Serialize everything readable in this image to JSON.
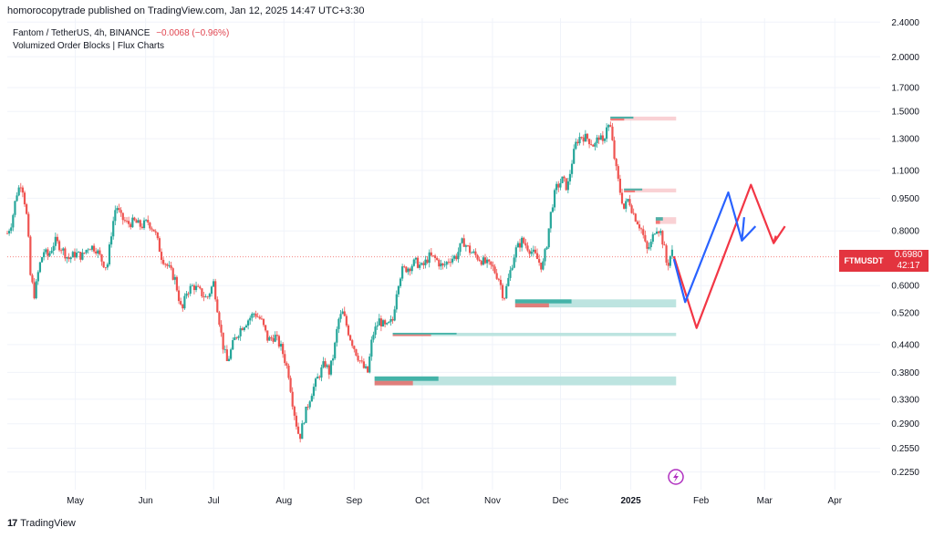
{
  "header": {
    "published": "homorocopytrade published on TradingView.com, Jan 12, 2025 14:47 UTC+3:30"
  },
  "legend": {
    "symbol_line": "Fantom / TetherUS, 4h, BINANCE",
    "change": "−0.0068 (−0.96%)",
    "indicator": "Volumized Order Blocks | Flux Charts"
  },
  "price_tag": {
    "symbol": "FTMUSDT",
    "price": "0.6980",
    "countdown": "42:17"
  },
  "footer": {
    "brand": "TradingView",
    "logo": "17"
  },
  "colors": {
    "up": "#26a69a",
    "down": "#ef5350",
    "blue_path": "#2962ff",
    "red_path": "#f23645",
    "bull_zone": "#b2dfdb",
    "bear_zone": "#f8c9cc"
  },
  "chart_data": {
    "type": "candlestick",
    "title": "Fantom / TetherUS, 4h, BINANCE",
    "y_scale": "log",
    "ylim": [
      0.205,
      2.45
    ],
    "y_ticks": [
      "2.4000",
      "2.0000",
      "1.7000",
      "1.5000",
      "1.3000",
      "1.1000",
      "0.9500",
      "0.8000",
      "0.6000",
      "0.5200",
      "0.4400",
      "0.3800",
      "0.3300",
      "0.2900",
      "0.2550",
      "0.2250"
    ],
    "y_tick_values": [
      2.4,
      2.0,
      1.7,
      1.5,
      1.3,
      1.1,
      0.95,
      0.8,
      0.6,
      0.52,
      0.44,
      0.38,
      0.33,
      0.29,
      0.255,
      0.225
    ],
    "x_labels": [
      "May",
      "Jun",
      "Jul",
      "Aug",
      "Sep",
      "Oct",
      "Nov",
      "Dec",
      "2025",
      "Feb",
      "Mar",
      "Apr"
    ],
    "x_label_days": [
      30,
      61,
      91,
      122,
      153,
      183,
      214,
      244,
      275,
      306,
      334,
      365
    ],
    "xlim_days": [
      0,
      385
    ],
    "last_price": 0.698,
    "price_path": [
      {
        "day": 0,
        "price": 0.79
      },
      {
        "day": 2,
        "price": 0.84
      },
      {
        "day": 4,
        "price": 0.97
      },
      {
        "day": 6,
        "price": 1.03
      },
      {
        "day": 7,
        "price": 0.99
      },
      {
        "day": 9,
        "price": 0.83
      },
      {
        "day": 10,
        "price": 0.64
      },
      {
        "day": 12,
        "price": 0.57
      },
      {
        "day": 14,
        "price": 0.66
      },
      {
        "day": 16,
        "price": 0.72
      },
      {
        "day": 18,
        "price": 0.7
      },
      {
        "day": 21,
        "price": 0.76
      },
      {
        "day": 24,
        "price": 0.73
      },
      {
        "day": 27,
        "price": 0.69
      },
      {
        "day": 30,
        "price": 0.71
      },
      {
        "day": 33,
        "price": 0.7
      },
      {
        "day": 36,
        "price": 0.74
      },
      {
        "day": 39,
        "price": 0.73
      },
      {
        "day": 42,
        "price": 0.68
      },
      {
        "day": 44,
        "price": 0.66
      },
      {
        "day": 46,
        "price": 0.8
      },
      {
        "day": 48,
        "price": 0.92
      },
      {
        "day": 50,
        "price": 0.86
      },
      {
        "day": 53,
        "price": 0.83
      },
      {
        "day": 56,
        "price": 0.84
      },
      {
        "day": 59,
        "price": 0.82
      },
      {
        "day": 62,
        "price": 0.84
      },
      {
        "day": 65,
        "price": 0.8
      },
      {
        "day": 68,
        "price": 0.7
      },
      {
        "day": 71,
        "price": 0.66
      },
      {
        "day": 74,
        "price": 0.62
      },
      {
        "day": 77,
        "price": 0.52
      },
      {
        "day": 79,
        "price": 0.58
      },
      {
        "day": 82,
        "price": 0.6
      },
      {
        "day": 85,
        "price": 0.58
      },
      {
        "day": 88,
        "price": 0.56
      },
      {
        "day": 91,
        "price": 0.61
      },
      {
        "day": 93,
        "price": 0.52
      },
      {
        "day": 95,
        "price": 0.44
      },
      {
        "day": 97,
        "price": 0.4
      },
      {
        "day": 100,
        "price": 0.45
      },
      {
        "day": 103,
        "price": 0.48
      },
      {
        "day": 106,
        "price": 0.5
      },
      {
        "day": 109,
        "price": 0.52
      },
      {
        "day": 112,
        "price": 0.5
      },
      {
        "day": 115,
        "price": 0.45
      },
      {
        "day": 118,
        "price": 0.46
      },
      {
        "day": 121,
        "price": 0.43
      },
      {
        "day": 124,
        "price": 0.38
      },
      {
        "day": 126,
        "price": 0.32
      },
      {
        "day": 128,
        "price": 0.28
      },
      {
        "day": 129,
        "price": 0.27
      },
      {
        "day": 131,
        "price": 0.3
      },
      {
        "day": 134,
        "price": 0.34
      },
      {
        "day": 137,
        "price": 0.37
      },
      {
        "day": 140,
        "price": 0.4
      },
      {
        "day": 142,
        "price": 0.38
      },
      {
        "day": 144,
        "price": 0.42
      },
      {
        "day": 146,
        "price": 0.5
      },
      {
        "day": 148,
        "price": 0.52
      },
      {
        "day": 151,
        "price": 0.46
      },
      {
        "day": 154,
        "price": 0.42
      },
      {
        "day": 157,
        "price": 0.39
      },
      {
        "day": 159,
        "price": 0.38
      },
      {
        "day": 161,
        "price": 0.46
      },
      {
        "day": 164,
        "price": 0.5
      },
      {
        "day": 167,
        "price": 0.48
      },
      {
        "day": 170,
        "price": 0.5
      },
      {
        "day": 172,
        "price": 0.6
      },
      {
        "day": 174,
        "price": 0.65
      },
      {
        "day": 177,
        "price": 0.66
      },
      {
        "day": 180,
        "price": 0.68
      },
      {
        "day": 183,
        "price": 0.66
      },
      {
        "day": 186,
        "price": 0.7
      },
      {
        "day": 189,
        "price": 0.69
      },
      {
        "day": 192,
        "price": 0.66
      },
      {
        "day": 195,
        "price": 0.69
      },
      {
        "day": 198,
        "price": 0.7
      },
      {
        "day": 201,
        "price": 0.76
      },
      {
        "day": 204,
        "price": 0.72
      },
      {
        "day": 207,
        "price": 0.7
      },
      {
        "day": 210,
        "price": 0.68
      },
      {
        "day": 214,
        "price": 0.66
      },
      {
        "day": 217,
        "price": 0.62
      },
      {
        "day": 219,
        "price": 0.56
      },
      {
        "day": 221,
        "price": 0.62
      },
      {
        "day": 224,
        "price": 0.72
      },
      {
        "day": 227,
        "price": 0.76
      },
      {
        "day": 230,
        "price": 0.73
      },
      {
        "day": 233,
        "price": 0.7
      },
      {
        "day": 236,
        "price": 0.66
      },
      {
        "day": 238,
        "price": 0.75
      },
      {
        "day": 240,
        "price": 0.9
      },
      {
        "day": 242,
        "price": 1.0
      },
      {
        "day": 245,
        "price": 1.05
      },
      {
        "day": 247,
        "price": 1.0
      },
      {
        "day": 249,
        "price": 1.15
      },
      {
        "day": 251,
        "price": 1.28
      },
      {
        "day": 253,
        "price": 1.32
      },
      {
        "day": 256,
        "price": 1.3
      },
      {
        "day": 259,
        "price": 1.25
      },
      {
        "day": 261,
        "price": 1.32
      },
      {
        "day": 263,
        "price": 1.25
      },
      {
        "day": 264,
        "price": 1.4
      },
      {
        "day": 266,
        "price": 1.38
      },
      {
        "day": 268,
        "price": 1.15
      },
      {
        "day": 270,
        "price": 1.0
      },
      {
        "day": 272,
        "price": 0.9
      },
      {
        "day": 274,
        "price": 0.95
      },
      {
        "day": 276,
        "price": 0.88
      },
      {
        "day": 278,
        "price": 0.84
      },
      {
        "day": 280,
        "price": 0.8
      },
      {
        "day": 282,
        "price": 0.72
      },
      {
        "day": 284,
        "price": 0.75
      },
      {
        "day": 286,
        "price": 0.82
      },
      {
        "day": 288,
        "price": 0.8
      },
      {
        "day": 290,
        "price": 0.72
      },
      {
        "day": 291,
        "price": 0.66
      },
      {
        "day": 293,
        "price": 0.72
      },
      {
        "day": 294,
        "price": 0.7
      }
    ],
    "order_blocks": [
      {
        "type": "bearish",
        "top": 1.46,
        "bottom": 1.43,
        "start_day": 266,
        "end_day": 295
      },
      {
        "type": "bearish",
        "top": 1.0,
        "bottom": 0.98,
        "start_day": 272,
        "end_day": 295
      },
      {
        "type": "bearish",
        "top": 0.86,
        "bottom": 0.83,
        "start_day": 286,
        "end_day": 295
      },
      {
        "type": "bullish",
        "top": 0.558,
        "bottom": 0.535,
        "start_day": 224,
        "end_day": 295
      },
      {
        "type": "bullish",
        "top": 0.468,
        "bottom": 0.46,
        "start_day": 170,
        "end_day": 295
      },
      {
        "type": "bullish",
        "top": 0.372,
        "bottom": 0.355,
        "start_day": 162,
        "end_day": 295
      }
    ],
    "projection_blue": [
      {
        "day": 294,
        "price": 0.69
      },
      {
        "day": 299,
        "price": 0.55
      },
      {
        "day": 318,
        "price": 0.98
      },
      {
        "day": 324,
        "price": 0.76
      },
      {
        "day": 330,
        "price": 0.82
      },
      {
        "day": 325,
        "price": 0.86
      }
    ],
    "projection_red": [
      {
        "day": 294,
        "price": 0.7
      },
      {
        "day": 304,
        "price": 0.48
      },
      {
        "day": 328,
        "price": 1.02
      },
      {
        "day": 338,
        "price": 0.75
      },
      {
        "day": 343,
        "price": 0.82
      },
      {
        "day": 339,
        "price": 0.78
      }
    ]
  }
}
